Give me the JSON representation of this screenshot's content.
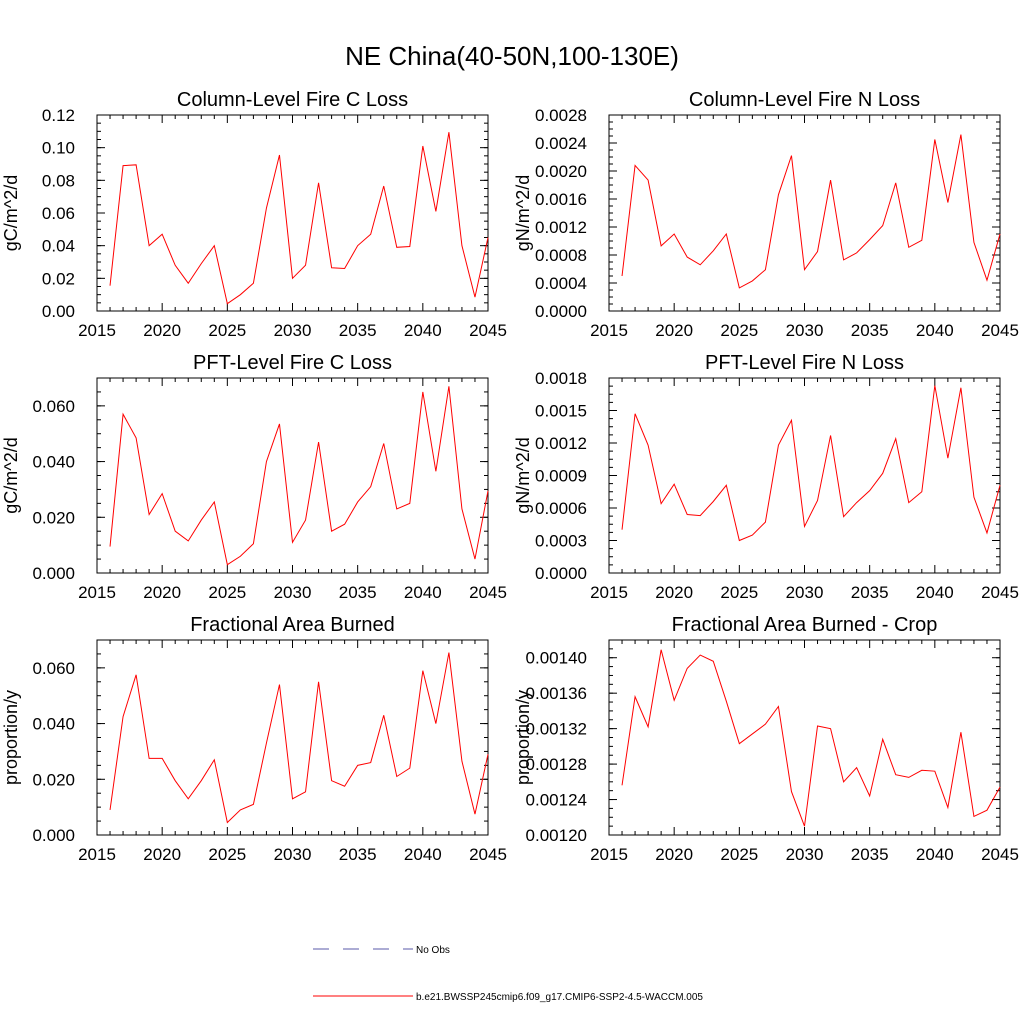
{
  "figure_title": "NE China(40-50N,100-130E)",
  "legend": [
    {
      "label": "No Obs",
      "color": "#5a5aa8",
      "style": "dashed"
    },
    {
      "label": "b.e21.BWSSP245cmip6.f09_g17.CMIP6-SSP2-4.5-WACCM.005",
      "color": "#ff0000",
      "style": "solid"
    }
  ],
  "chart_data": [
    {
      "type": "line",
      "title": "Column-Level Fire C Loss",
      "ylabel": "gC/m^2/d",
      "xlim": [
        2015,
        2045
      ],
      "ylim": [
        0,
        0.12
      ],
      "x_ticks": [
        2015,
        2020,
        2025,
        2030,
        2035,
        2040,
        2045
      ],
      "y_ticks": [
        "0.00",
        "0.02",
        "0.04",
        "0.06",
        "0.08",
        "0.10",
        "0.12"
      ],
      "x": [
        2016,
        2017,
        2018,
        2019,
        2020,
        2021,
        2022,
        2023,
        2024,
        2025,
        2026,
        2027,
        2028,
        2029,
        2030,
        2031,
        2032,
        2033,
        2034,
        2035,
        2036,
        2037,
        2038,
        2039,
        2040,
        2041,
        2042,
        2043,
        2044,
        2045
      ],
      "series": [
        {
          "color": "#ff0000",
          "values": [
            0.0155,
            0.089,
            0.0895,
            0.04,
            0.047,
            0.028,
            0.017,
            0.029,
            0.04,
            0.0045,
            0.01,
            0.017,
            0.063,
            0.0955,
            0.02,
            0.028,
            0.0785,
            0.0265,
            0.026,
            0.04,
            0.047,
            0.0765,
            0.039,
            0.0395,
            0.101,
            0.061,
            0.1095,
            0.04,
            0.0085,
            0.045
          ]
        }
      ]
    },
    {
      "type": "line",
      "title": "Column-Level Fire N Loss",
      "ylabel": "gN/m^2/d",
      "xlim": [
        2015,
        2045
      ],
      "ylim": [
        0,
        0.0028
      ],
      "x_ticks": [
        2015,
        2020,
        2025,
        2030,
        2035,
        2040,
        2045
      ],
      "y_ticks": [
        "0.0000",
        "0.0004",
        "0.0008",
        "0.0012",
        "0.0016",
        "0.0020",
        "0.0024",
        "0.0028"
      ],
      "x": [
        2016,
        2017,
        2018,
        2019,
        2020,
        2021,
        2022,
        2023,
        2024,
        2025,
        2026,
        2027,
        2028,
        2029,
        2030,
        2031,
        2032,
        2033,
        2034,
        2035,
        2036,
        2037,
        2038,
        2039,
        2040,
        2041,
        2042,
        2043,
        2044,
        2045
      ],
      "series": [
        {
          "color": "#ff0000",
          "values": [
            0.0005,
            0.00208,
            0.00187,
            0.00093,
            0.0011,
            0.00077,
            0.00066,
            0.00086,
            0.0011,
            0.00033,
            0.00043,
            0.00059,
            0.00166,
            0.00222,
            0.00059,
            0.00085,
            0.00187,
            0.00073,
            0.00083,
            0.00102,
            0.00122,
            0.00183,
            0.00091,
            0.00101,
            0.00245,
            0.00155,
            0.00252,
            0.00098,
            0.00044,
            0.0011
          ]
        }
      ]
    },
    {
      "type": "line",
      "title": "PFT-Level Fire C Loss",
      "ylabel": "gC/m^2/d",
      "xlim": [
        2015,
        2045
      ],
      "ylim": [
        0,
        0.07
      ],
      "x_ticks": [
        2015,
        2020,
        2025,
        2030,
        2035,
        2040,
        2045
      ],
      "y_ticks": [
        "0.000",
        "0.020",
        "0.040",
        "0.060"
      ],
      "y_tick_values": [
        0,
        0.02,
        0.04,
        0.06
      ],
      "x": [
        2016,
        2017,
        2018,
        2019,
        2020,
        2021,
        2022,
        2023,
        2024,
        2025,
        2026,
        2027,
        2028,
        2029,
        2030,
        2031,
        2032,
        2033,
        2034,
        2035,
        2036,
        2037,
        2038,
        2039,
        2040,
        2041,
        2042,
        2043,
        2044,
        2045
      ],
      "series": [
        {
          "color": "#ff0000",
          "values": [
            0.0095,
            0.057,
            0.0485,
            0.021,
            0.0285,
            0.015,
            0.0115,
            0.019,
            0.0255,
            0.003,
            0.006,
            0.0105,
            0.04,
            0.0535,
            0.011,
            0.019,
            0.047,
            0.015,
            0.0175,
            0.0255,
            0.031,
            0.0465,
            0.023,
            0.025,
            0.065,
            0.0365,
            0.067,
            0.023,
            0.005,
            0.0295
          ]
        }
      ]
    },
    {
      "type": "line",
      "title": "PFT-Level Fire N Loss",
      "ylabel": "gN/m^2/d",
      "xlim": [
        2015,
        2045
      ],
      "ylim": [
        0,
        0.0018
      ],
      "x_ticks": [
        2015,
        2020,
        2025,
        2030,
        2035,
        2040,
        2045
      ],
      "y_ticks": [
        "0.0000",
        "0.0003",
        "0.0006",
        "0.0009",
        "0.0012",
        "0.0015",
        "0.0018"
      ],
      "x": [
        2016,
        2017,
        2018,
        2019,
        2020,
        2021,
        2022,
        2023,
        2024,
        2025,
        2026,
        2027,
        2028,
        2029,
        2030,
        2031,
        2032,
        2033,
        2034,
        2035,
        2036,
        2037,
        2038,
        2039,
        2040,
        2041,
        2042,
        2043,
        2044,
        2045
      ],
      "series": [
        {
          "color": "#ff0000",
          "values": [
            0.0004,
            0.00147,
            0.00118,
            0.00064,
            0.00082,
            0.00054,
            0.00053,
            0.00066,
            0.00081,
            0.0003,
            0.00035,
            0.00047,
            0.00118,
            0.00141,
            0.00043,
            0.00067,
            0.00127,
            0.00052,
            0.00065,
            0.00076,
            0.00092,
            0.00124,
            0.00065,
            0.00075,
            0.00173,
            0.00106,
            0.00171,
            0.0007,
            0.00037,
            0.00081
          ]
        }
      ]
    },
    {
      "type": "line",
      "title": "Fractional Area Burned",
      "ylabel": "proportion/y",
      "xlim": [
        2015,
        2045
      ],
      "ylim": [
        0,
        0.07
      ],
      "x_ticks": [
        2015,
        2020,
        2025,
        2030,
        2035,
        2040,
        2045
      ],
      "y_ticks": [
        "0.000",
        "0.020",
        "0.040",
        "0.060"
      ],
      "y_tick_values": [
        0,
        0.02,
        0.04,
        0.06
      ],
      "x": [
        2016,
        2017,
        2018,
        2019,
        2020,
        2021,
        2022,
        2023,
        2024,
        2025,
        2026,
        2027,
        2028,
        2029,
        2030,
        2031,
        2032,
        2033,
        2034,
        2035,
        2036,
        2037,
        2038,
        2039,
        2040,
        2041,
        2042,
        2043,
        2044,
        2045
      ],
      "series": [
        {
          "color": "#ff0000",
          "values": [
            0.009,
            0.0425,
            0.0575,
            0.0275,
            0.0275,
            0.0195,
            0.013,
            0.0195,
            0.027,
            0.0045,
            0.009,
            0.011,
            0.033,
            0.054,
            0.013,
            0.0155,
            0.055,
            0.0195,
            0.0175,
            0.025,
            0.026,
            0.043,
            0.021,
            0.024,
            0.059,
            0.04,
            0.0655,
            0.0265,
            0.0075,
            0.029
          ]
        }
      ]
    },
    {
      "type": "line",
      "title": "Fractional Area Burned - Crop",
      "ylabel": "proportion/y",
      "xlim": [
        2015,
        2045
      ],
      "ylim": [
        0.0012,
        0.00142
      ],
      "x_ticks": [
        2015,
        2020,
        2025,
        2030,
        2035,
        2040,
        2045
      ],
      "y_ticks": [
        "0.00120",
        "0.00124",
        "0.00128",
        "0.00132",
        "0.00136",
        "0.00140"
      ],
      "x": [
        2016,
        2017,
        2018,
        2019,
        2020,
        2021,
        2022,
        2023,
        2024,
        2025,
        2026,
        2027,
        2028,
        2029,
        2030,
        2031,
        2032,
        2033,
        2034,
        2035,
        2036,
        2037,
        2038,
        2039,
        2040,
        2041,
        2042,
        2043,
        2044,
        2045
      ],
      "series": [
        {
          "color": "#ff0000",
          "values": [
            0.001256,
            0.001356,
            0.001322,
            0.001409,
            0.001352,
            0.001388,
            0.001403,
            0.001396,
            0.001351,
            0.001303,
            0.001314,
            0.001325,
            0.001345,
            0.001249,
            0.00121,
            0.001323,
            0.00132,
            0.00126,
            0.001276,
            0.001244,
            0.001308,
            0.001268,
            0.001265,
            0.001273,
            0.001272,
            0.001231,
            0.001316,
            0.001221,
            0.001228,
            0.001254
          ]
        }
      ]
    }
  ]
}
